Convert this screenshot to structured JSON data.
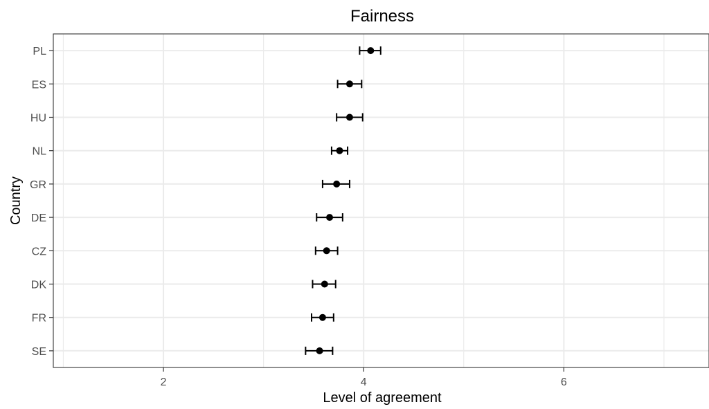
{
  "chart_data": {
    "type": "scatter",
    "title": "Fairness",
    "xlabel": "Level of agreement",
    "ylabel": "Country",
    "xlim": [
      0.9,
      7.45
    ],
    "x_ticks": [
      2,
      4,
      6
    ],
    "grid": true,
    "marker_color": "#000000",
    "categories": [
      "PL",
      "ES",
      "HU",
      "NL",
      "GR",
      "DE",
      "CZ",
      "DK",
      "FR",
      "SE"
    ],
    "values": [
      4.07,
      3.86,
      3.86,
      3.76,
      3.73,
      3.66,
      3.63,
      3.61,
      3.59,
      3.56
    ],
    "ci_low": [
      3.96,
      3.74,
      3.73,
      3.68,
      3.59,
      3.53,
      3.52,
      3.49,
      3.48,
      3.42
    ],
    "ci_high": [
      4.17,
      3.98,
      3.99,
      3.84,
      3.86,
      3.79,
      3.74,
      3.72,
      3.7,
      3.69
    ]
  }
}
